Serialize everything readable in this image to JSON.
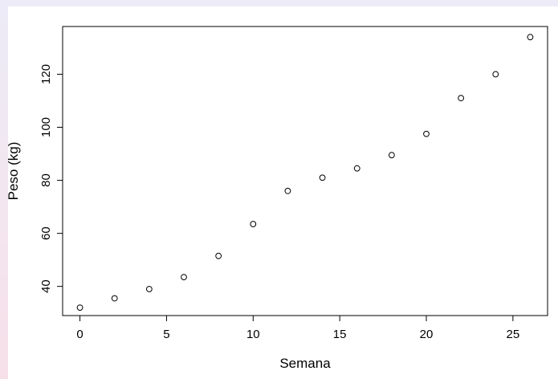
{
  "chart_data": {
    "type": "scatter",
    "title": "",
    "xlabel": "Semana",
    "ylabel": "Peso (kg)",
    "xlim": [
      -1,
      27
    ],
    "ylim": [
      29,
      138
    ],
    "x_ticks": [
      0,
      5,
      10,
      15,
      20,
      25
    ],
    "y_ticks": [
      40,
      60,
      80,
      100,
      120
    ],
    "grid": false,
    "legend": "none",
    "marker": "open-circle",
    "colors": {
      "points": "#000000",
      "frame": "#000000",
      "background": "#ffffff"
    },
    "points": [
      {
        "x": 0,
        "y": 32
      },
      {
        "x": 2,
        "y": 35.5
      },
      {
        "x": 4,
        "y": 39
      },
      {
        "x": 6,
        "y": 43.5
      },
      {
        "x": 8,
        "y": 51.5
      },
      {
        "x": 10,
        "y": 63.5
      },
      {
        "x": 12,
        "y": 76
      },
      {
        "x": 14,
        "y": 81
      },
      {
        "x": 16,
        "y": 84.5
      },
      {
        "x": 18,
        "y": 89.5
      },
      {
        "x": 20,
        "y": 97.5
      },
      {
        "x": 22,
        "y": 111
      },
      {
        "x": 24,
        "y": 120
      },
      {
        "x": 26,
        "y": 134
      }
    ]
  }
}
